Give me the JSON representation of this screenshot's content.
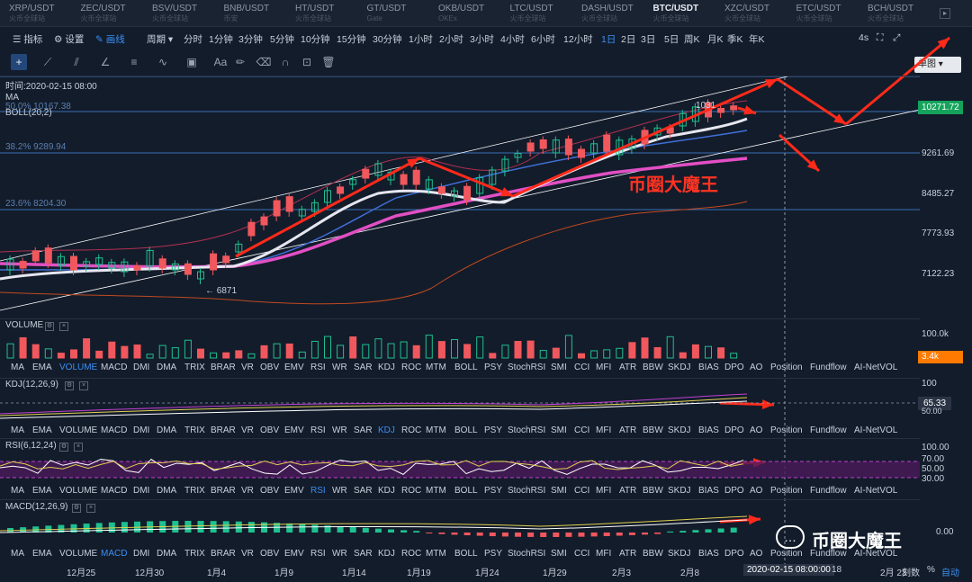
{
  "tabs": [
    {
      "name": "XRP/USDT",
      "sub": "火币全球站"
    },
    {
      "name": "ZEC/USDT",
      "sub": "火币全球站"
    },
    {
      "name": "BSV/USDT",
      "sub": "火币全球站"
    },
    {
      "name": "BNB/USDT",
      "sub": "币安"
    },
    {
      "name": "HT/USDT",
      "sub": "火币全球站"
    },
    {
      "name": "GT/USDT",
      "sub": "Gate"
    },
    {
      "name": "OKB/USDT",
      "sub": "OKEx"
    },
    {
      "name": "LTC/USDT",
      "sub": "火币全球站"
    },
    {
      "name": "DASH/USDT",
      "sub": "火币全球站"
    },
    {
      "name": "BTC/USDT",
      "sub": "火币全球站"
    },
    {
      "name": "XZC/USDT",
      "sub": "火币全球站"
    },
    {
      "name": "ETC/USDT",
      "sub": "火币全球站"
    },
    {
      "name": "BCH/USDT",
      "sub": "火币全球站"
    }
  ],
  "active_tab": 9,
  "toolbar": {
    "indicator": "指标",
    "settings": "设置",
    "drawing": "画线",
    "period": "周期",
    "periods": [
      "分时",
      "1分钟",
      "3分钟",
      "5分钟",
      "10分钟",
      "15分钟",
      "30分钟",
      "1小时",
      "2小时",
      "3小时",
      "4小时",
      "6小时",
      "12小时",
      "1日",
      "2日",
      "3日",
      "5日",
      "周K",
      "月K",
      "季K",
      "年K"
    ],
    "active_period": "1日",
    "interval": "4s",
    "layout_select": "单图"
  },
  "main": {
    "time_label": "时间:2020-02-15 08:00",
    "ma_label": "MA",
    "boll_label": "BOLL(20,2)",
    "fib": [
      {
        "label": "50.0% 10167.38"
      },
      {
        "label": "38.2% 9289.94"
      },
      {
        "label": "23.6% 8204.30"
      }
    ],
    "price_axis": [
      "10271.72",
      "9261.69",
      "8485.27",
      "7773.93",
      "7122.23"
    ],
    "current_price": "10271.72",
    "low_marker": "← 6871",
    "high_marker": "1031",
    "watermark": "币圈大魔王"
  },
  "volume": {
    "label": "VOLUME",
    "axis": "100.0k",
    "current": "3.4k"
  },
  "kdj": {
    "label": "KDJ(12,26,9)",
    "axis": [
      "100",
      "65.33",
      "50.00"
    ]
  },
  "rsi": {
    "label": "RSI(6,12,24)",
    "axis": [
      "100.00",
      "70.00",
      "50.00",
      "30.00"
    ]
  },
  "macd": {
    "label": "MACD(12,26,9)",
    "axis": "0.00"
  },
  "indicators": [
    "MA",
    "EMA",
    "VOLUME",
    "MACD",
    "DMI",
    "DMA",
    "TRIX",
    "BRAR",
    "VR",
    "OBV",
    "EMV",
    "RSI",
    "WR",
    "SAR",
    "KDJ",
    "ROC",
    "MTM",
    "BOLL",
    "PSY",
    "StochRSI",
    "SMI",
    "CCI",
    "MFI",
    "ATR",
    "BBW",
    "SKDJ",
    "BIAS",
    "DPO",
    "AO",
    "Position",
    "Fundflow",
    "AI-NetVOL"
  ],
  "x_axis": [
    "12月25",
    "12月30",
    "1月4",
    "1月9",
    "1月14",
    "1月19",
    "1月24",
    "1月29",
    "2月3",
    "2月8"
  ],
  "cursor_date": "2020-02-15 08:00:00",
  "x_tail": [
    "18",
    "2月 23"
  ],
  "bottom_right": {
    "left": "刻数",
    "pct": "%",
    "auto": "自动"
  },
  "brand": "币圈大魔王",
  "colors": {
    "up": "#1fc08f",
    "down": "#f0585d",
    "accent": "#3b8ff3",
    "arrow": "#ff2a1a",
    "boll_mid": "#e6e6f0",
    "ma_pink": "#e24fc4"
  }
}
